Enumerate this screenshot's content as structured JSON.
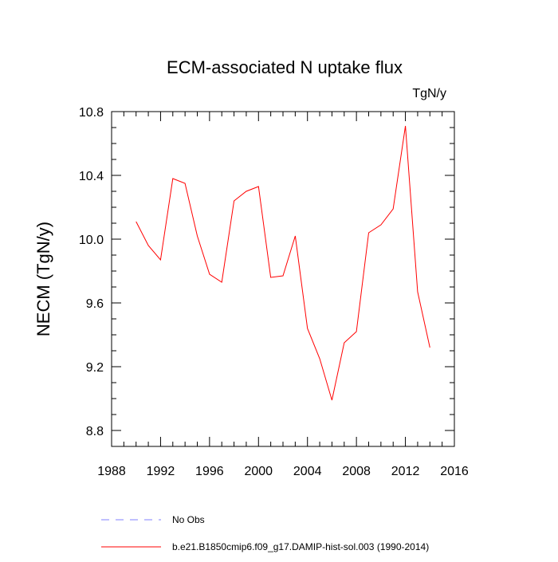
{
  "chart_data": {
    "type": "line",
    "title": "ECM-associated N uptake flux",
    "units_label": "TgN/y",
    "ylabel": "NECM  (TgN/y)",
    "xlabel": "",
    "xlim": [
      1988,
      2016
    ],
    "ylim": [
      8.7,
      10.8
    ],
    "x_ticks": [
      "1988",
      "1992",
      "1996",
      "2000",
      "2004",
      "2008",
      "2012",
      "2016"
    ],
    "y_ticks": [
      "8.8",
      "9.2",
      "9.6",
      "10.0",
      "10.4",
      "10.8"
    ],
    "grid": false,
    "legend_placement": "bottom",
    "series": [
      {
        "name": "b.e21.B1850cmip6.f09_g17.DAMIP-hist-sol.003 (1990-2014)",
        "color": "#ff0000",
        "style": "solid",
        "x": [
          1990,
          1991,
          1992,
          1993,
          1994,
          1995,
          1996,
          1997,
          1998,
          1999,
          2000,
          2001,
          2002,
          2003,
          2004,
          2005,
          2006,
          2007,
          2008,
          2009,
          2010,
          2011,
          2012,
          2013,
          2014
        ],
        "values": [
          10.11,
          9.96,
          9.87,
          10.38,
          10.35,
          10.02,
          9.78,
          9.73,
          10.24,
          10.3,
          10.33,
          9.76,
          9.77,
          10.02,
          9.44,
          9.25,
          8.99,
          9.35,
          9.42,
          10.04,
          10.09,
          10.19,
          10.71,
          9.67,
          9.32
        ]
      }
    ],
    "legend": [
      {
        "label": "No Obs",
        "color": "#8080ff",
        "style": "dashed"
      },
      {
        "label": "b.e21.B1850cmip6.f09_g17.DAMIP-hist-sol.003 (1990-2014)",
        "color": "#ff0000",
        "style": "solid"
      }
    ]
  }
}
